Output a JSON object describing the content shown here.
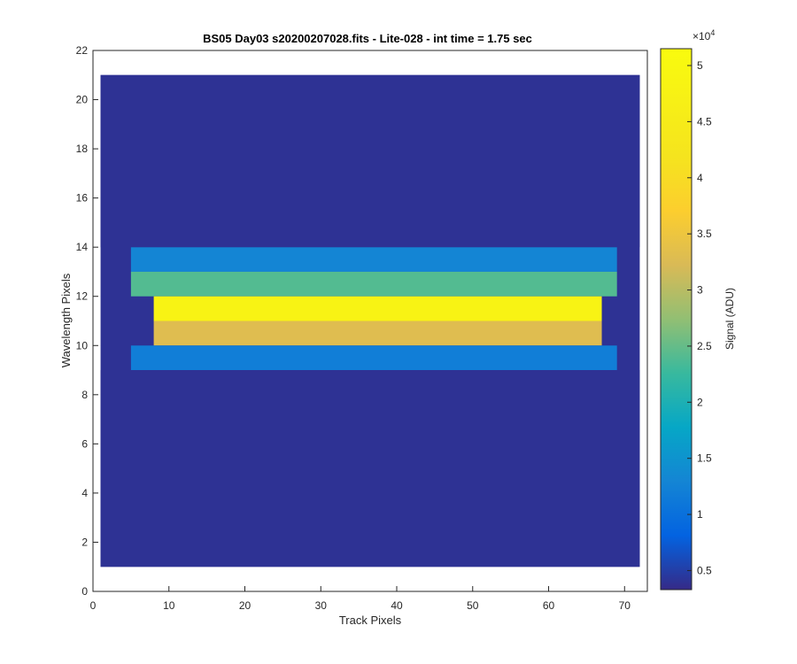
{
  "chart_data": {
    "type": "heatmap",
    "title": "BS05 Day03  s20200207028.fits - Lite-028 - int time = 1.75 sec",
    "xlabel": "Track Pixels",
    "ylabel": "Wavelength Pixels",
    "xlim": [
      0,
      73
    ],
    "ylim": [
      0,
      22
    ],
    "xticks": [
      "0",
      "10",
      "20",
      "30",
      "40",
      "50",
      "60",
      "70"
    ],
    "yticks": [
      "0",
      "2",
      "4",
      "6",
      "8",
      "10",
      "12",
      "14",
      "16",
      "18",
      "20",
      "22"
    ],
    "data_extent": {
      "x": [
        1,
        72
      ],
      "y": [
        1,
        21
      ]
    },
    "colormap": "parula",
    "colorbar": {
      "label": "Signal (ADU)",
      "exponent_label": "×10",
      "exponent": "4",
      "min": 3300,
      "max": 51500,
      "ticks": [
        "0.5",
        "1",
        "1.5",
        "2",
        "2.5",
        "3",
        "3.5",
        "4",
        "4.5",
        "5"
      ],
      "tick_values": [
        5000,
        10000,
        15000,
        20000,
        25000,
        30000,
        35000,
        40000,
        45000,
        50000
      ]
    },
    "rows": [
      {
        "y_range": [
          13,
          14
        ],
        "x_range": [
          5,
          69
        ],
        "signal": 13000
      },
      {
        "y_range": [
          12,
          13
        ],
        "x_range": [
          5,
          69
        ],
        "signal": 24000
      },
      {
        "y_range": [
          11,
          12
        ],
        "x_range": [
          8,
          67
        ],
        "signal": 48000
      },
      {
        "y_range": [
          10,
          11
        ],
        "x_range": [
          8,
          67
        ],
        "signal": 33000
      },
      {
        "y_range": [
          9,
          10
        ],
        "x_range": [
          5,
          69
        ],
        "signal": 12000
      },
      {
        "y_range": [
          1,
          9
        ],
        "x_range": [
          1,
          72
        ],
        "signal": 4000
      },
      {
        "y_range": [
          14,
          21
        ],
        "x_range": [
          1,
          72
        ],
        "signal": 4000
      }
    ]
  }
}
